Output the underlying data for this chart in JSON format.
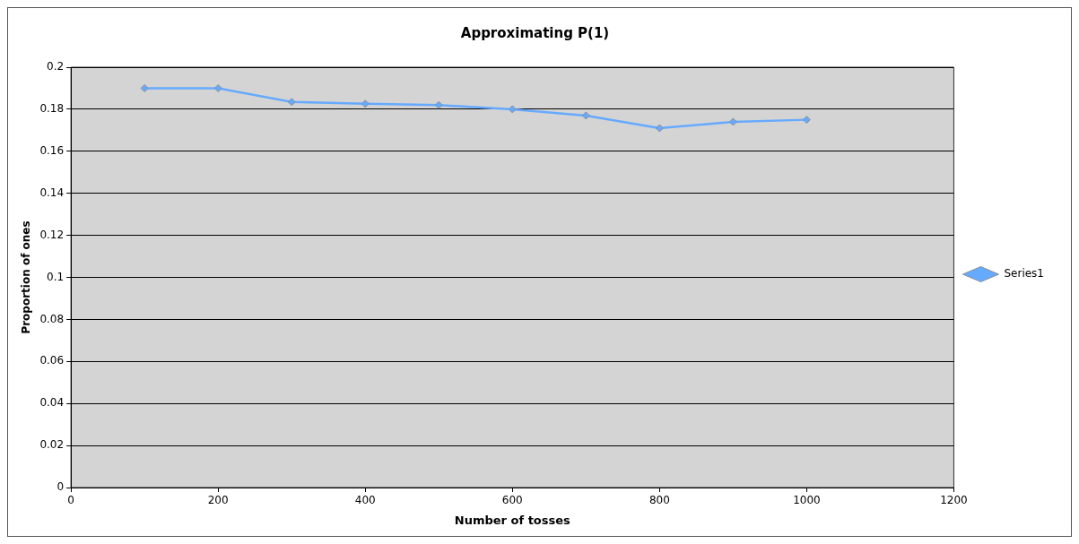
{
  "chart_data": {
    "type": "line",
    "title": "Approximating P(1)",
    "xlabel": "Number of tosses",
    "ylabel": "Proportion of ones",
    "x": [
      100,
      200,
      300,
      400,
      500,
      600,
      700,
      800,
      900,
      1000
    ],
    "series": [
      {
        "name": "Series1",
        "color": "#66aaff",
        "values": [
          0.19,
          0.19,
          0.1835,
          0.1826,
          0.182,
          0.18,
          0.177,
          0.171,
          0.174,
          0.175
        ]
      }
    ],
    "xlim": [
      0,
      1200
    ],
    "xticks": [
      0,
      200,
      400,
      600,
      800,
      1000,
      1200
    ],
    "ylim": [
      0,
      0.2
    ],
    "yticks": [
      0,
      0.02,
      0.04,
      0.06,
      0.08,
      0.1,
      0.12,
      0.14,
      0.16,
      0.18,
      0.2
    ],
    "grid": "y",
    "legend": "right",
    "marker": "diamond",
    "line_style": "solid"
  }
}
